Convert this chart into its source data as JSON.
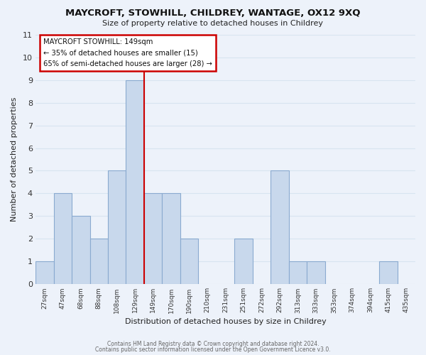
{
  "title": "MAYCROFT, STOWHILL, CHILDREY, WANTAGE, OX12 9XQ",
  "subtitle": "Size of property relative to detached houses in Childrey",
  "xlabel": "Distribution of detached houses by size in Childrey",
  "ylabel": "Number of detached properties",
  "categories": [
    "27sqm",
    "47sqm",
    "68sqm",
    "88sqm",
    "108sqm",
    "129sqm",
    "149sqm",
    "170sqm",
    "190sqm",
    "210sqm",
    "231sqm",
    "251sqm",
    "272sqm",
    "292sqm",
    "313sqm",
    "333sqm",
    "353sqm",
    "374sqm",
    "394sqm",
    "415sqm",
    "435sqm"
  ],
  "values": [
    1,
    4,
    3,
    2,
    5,
    9,
    4,
    4,
    2,
    0,
    0,
    2,
    0,
    5,
    1,
    1,
    0,
    0,
    0,
    1,
    0
  ],
  "highlight_index": 5,
  "bar_color": "#c8d8ec",
  "bar_edgecolor": "#8aaad0",
  "highlight_line_color": "#cc0000",
  "background_color": "#edf2fa",
  "grid_color": "#d8e4f0",
  "ylim_max": 11,
  "annotation_title": "MAYCROFT STOWHILL: 149sqm",
  "annotation_line1": "← 35% of detached houses are smaller (15)",
  "annotation_line2": "65% of semi-detached houses are larger (28) →",
  "footer_line1": "Contains HM Land Registry data © Crown copyright and database right 2024.",
  "footer_line2": "Contains public sector information licensed under the Open Government Licence v3.0."
}
